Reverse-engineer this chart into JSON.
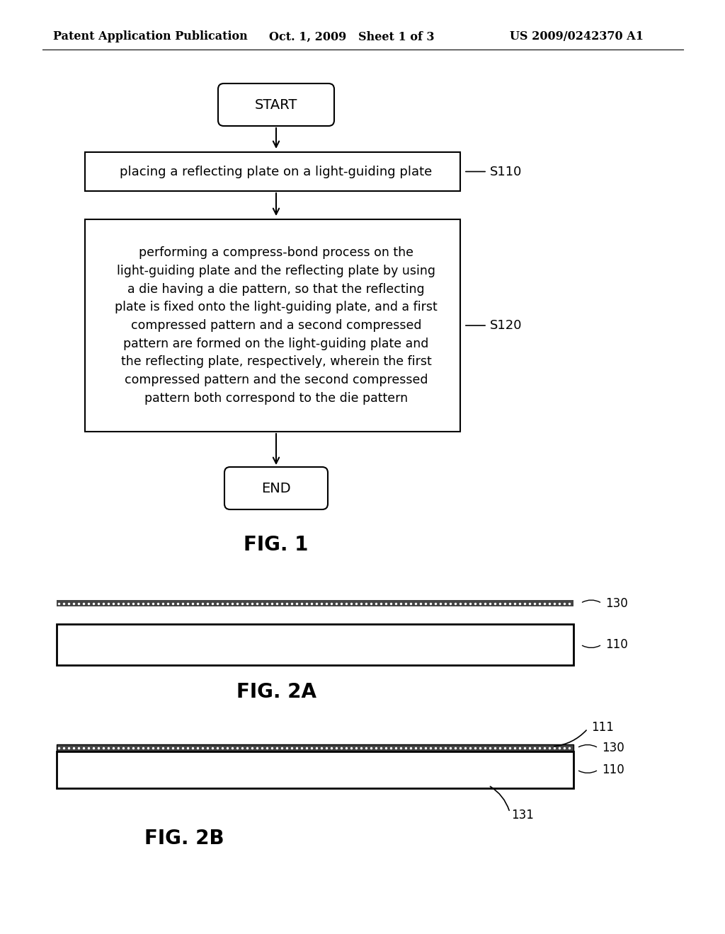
{
  "bg_color": "#ffffff",
  "header_left": "Patent Application Publication",
  "header_mid": "Oct. 1, 2009   Sheet 1 of 3",
  "header_right": "US 2009/0242370 A1",
  "header_fontsize": 11.5,
  "start_label": "START",
  "end_label": "END",
  "box1_text": "placing a reflecting plate on a light-guiding plate",
  "box1_label": "S110",
  "box2_text": "performing a compress-bond process on the\nlight-guiding plate and the reflecting plate by using\na die having a die pattern, so that the reflecting\nplate is fixed onto the light-guiding plate, and a first\ncompressed pattern and a second compressed\npattern are formed on the light-guiding plate and\nthe reflecting plate, respectively, wherein the first\ncompressed pattern and the second compressed\npattern both correspond to the die pattern",
  "box2_label": "S120",
  "fig1_label": "FIG. 1",
  "fig2a_label": "FIG. 2A",
  "fig2b_label": "FIG. 2B",
  "label_130_2a": "130",
  "label_110_2a": "110",
  "label_111": "111",
  "label_130_2b": "130",
  "label_110_2b": "110",
  "label_131": "131"
}
